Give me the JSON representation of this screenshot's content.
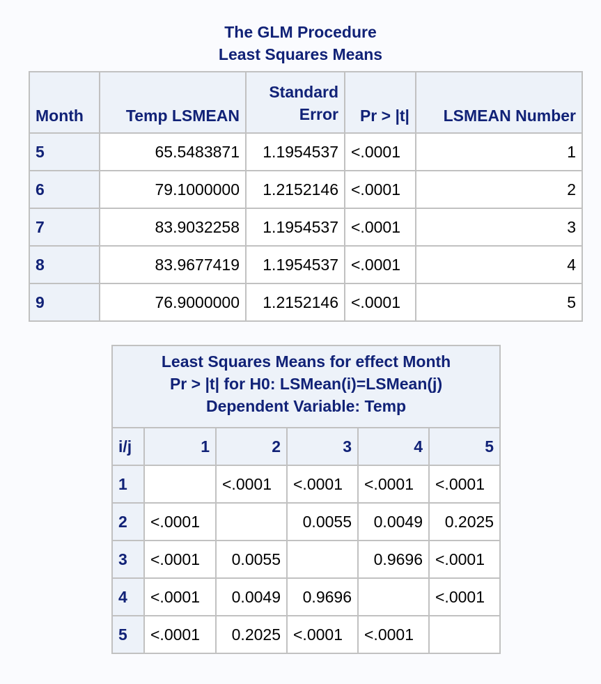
{
  "titles": [
    "The GLM Procedure",
    "Least Squares Means"
  ],
  "lsmeans": {
    "headers": [
      "Month",
      "Temp LSMEAN",
      "Standard Error",
      "Pr > |t|",
      "LSMEAN Number"
    ],
    "header_line1": "Standard",
    "header_line2": "Error",
    "rows": [
      [
        "5",
        "65.5483871",
        "1.1954537",
        "<.0001",
        "1"
      ],
      [
        "6",
        "79.1000000",
        "1.2152146",
        "<.0001",
        "2"
      ],
      [
        "7",
        "83.9032258",
        "1.1954537",
        "<.0001",
        "3"
      ],
      [
        "8",
        "83.9677419",
        "1.1954537",
        "<.0001",
        "4"
      ],
      [
        "9",
        "76.9000000",
        "1.2152146",
        "<.0001",
        "5"
      ]
    ]
  },
  "pairwise": {
    "caption": [
      "Least Squares Means for effect Month",
      "Pr > |t| for H0: LSMean(i)=LSMean(j)",
      "Dependent Variable: Temp"
    ],
    "headers": [
      "i/j",
      "1",
      "2",
      "3",
      "4",
      "5"
    ],
    "rows": [
      [
        "1",
        "",
        "<.0001",
        "<.0001",
        "<.0001",
        "<.0001"
      ],
      [
        "2",
        "<.0001",
        "",
        "0.0055",
        "0.0049",
        "0.2025"
      ],
      [
        "3",
        "<.0001",
        "0.0055",
        "",
        "0.9696",
        "<.0001"
      ],
      [
        "4",
        "<.0001",
        "0.0049",
        "0.9696",
        "",
        "<.0001"
      ],
      [
        "5",
        "<.0001",
        "0.2025",
        "<.0001",
        "<.0001",
        ""
      ]
    ]
  },
  "colors": {
    "header_bg": "#edf2f9",
    "header_text": "#112277",
    "border": "#c1c1c1"
  }
}
